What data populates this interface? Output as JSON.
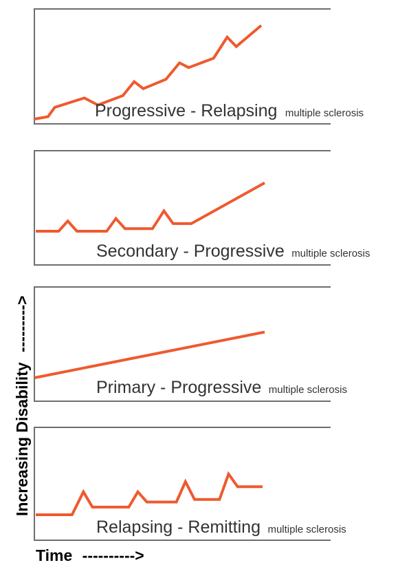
{
  "panels": [
    {
      "id": "progressive-relapsing",
      "name_big": "Progressive - Relapsing",
      "name_small": "multiple sclerosis",
      "curve": [
        [
          0,
          0
        ],
        [
          6,
          1
        ],
        [
          9,
          5
        ],
        [
          22,
          9
        ],
        [
          28,
          6
        ],
        [
          39,
          10
        ],
        [
          44,
          16
        ],
        [
          48,
          13
        ],
        [
          58,
          17
        ],
        [
          64,
          24
        ],
        [
          68,
          22
        ],
        [
          79,
          26
        ],
        [
          85,
          35
        ],
        [
          89,
          31
        ],
        [
          100,
          40
        ]
      ]
    },
    {
      "id": "secondary-progressive",
      "name_big": "Secondary - Progressive",
      "name_small": "multiple sclerosis",
      "curve": [
        [
          0,
          0
        ],
        [
          10,
          0
        ],
        [
          14,
          4
        ],
        [
          18,
          0
        ],
        [
          31,
          0
        ],
        [
          35,
          5
        ],
        [
          39,
          1
        ],
        [
          51,
          1
        ],
        [
          56,
          8
        ],
        [
          60,
          3
        ],
        [
          68,
          3
        ],
        [
          100,
          19
        ]
      ]
    },
    {
      "id": "primary-progressive",
      "name_big": "Primary - Progressive",
      "name_small": "multiple sclerosis",
      "curve": [
        [
          0,
          0
        ],
        [
          100,
          19
        ]
      ]
    },
    {
      "id": "relapsing-remitting",
      "name_big": "Relapsing - Remitting",
      "name_small": "multiple sclerosis",
      "curve": [
        [
          0,
          0
        ],
        [
          16,
          0
        ],
        [
          21,
          9
        ],
        [
          25,
          3
        ],
        [
          41,
          3
        ],
        [
          45,
          9
        ],
        [
          49,
          5
        ],
        [
          62,
          5
        ],
        [
          66,
          13
        ],
        [
          70,
          6
        ],
        [
          81,
          6
        ],
        [
          85,
          16
        ],
        [
          89,
          11
        ],
        [
          100,
          11
        ]
      ]
    }
  ],
  "axis": {
    "y_label": "Increasing Disability",
    "y_arrow": "--------->",
    "x_label": "Time",
    "x_arrow": "---------->"
  },
  "colors": {
    "curve": "#ee5a2f",
    "frame": "#6e6e6e",
    "text": "#333333"
  }
}
